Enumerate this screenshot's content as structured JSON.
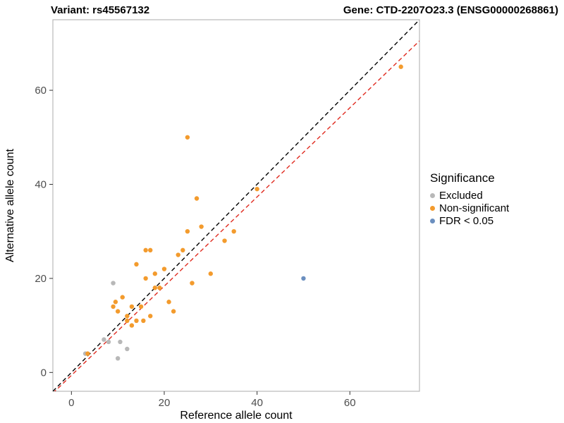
{
  "header": {
    "variant_title": "Variant: rs45567132",
    "gene_title": "Gene: CTD-2207O23.3 (ENSG00000268861)"
  },
  "legend": {
    "title": "Significance",
    "items": [
      {
        "label": "Excluded",
        "color": "#b8b8b8"
      },
      {
        "label": "Non-significant",
        "color": "#f39b2d"
      },
      {
        "label": "FDR < 0.05",
        "color": "#6b8fbf"
      }
    ]
  },
  "chart_data": {
    "type": "scatter",
    "title": "",
    "xlabel": "Reference allele count",
    "ylabel": "Alternative allele count",
    "xlim": [
      -4,
      75
    ],
    "ylim": [
      -4,
      75
    ],
    "xticks": [
      0,
      20,
      40,
      60
    ],
    "yticks": [
      0,
      20,
      40,
      60
    ],
    "grid": false,
    "legend_position": "right",
    "panel_border_color": "#b9b9b9",
    "tick_label_color": "#4d4d4d",
    "series": [
      {
        "name": "Excluded",
        "color": "#b8b8b8",
        "points": [
          [
            3,
            4
          ],
          [
            7,
            7
          ],
          [
            8,
            6.5
          ],
          [
            9,
            19
          ],
          [
            10,
            3
          ],
          [
            10.5,
            6.5
          ],
          [
            12,
            5
          ]
        ]
      },
      {
        "name": "Non-significant",
        "color": "#f39b2d",
        "points": [
          [
            3.5,
            4
          ],
          [
            9,
            14
          ],
          [
            9.5,
            15
          ],
          [
            10,
            13
          ],
          [
            11,
            16
          ],
          [
            12,
            12
          ],
          [
            12,
            11
          ],
          [
            13,
            14
          ],
          [
            13,
            10
          ],
          [
            14,
            23
          ],
          [
            14,
            11
          ],
          [
            15,
            14
          ],
          [
            15.5,
            11
          ],
          [
            16,
            26
          ],
          [
            16,
            20
          ],
          [
            17,
            26
          ],
          [
            17,
            12
          ],
          [
            18,
            21
          ],
          [
            18,
            18
          ],
          [
            19,
            18
          ],
          [
            20,
            22
          ],
          [
            21,
            15
          ],
          [
            22,
            13
          ],
          [
            23,
            25
          ],
          [
            24,
            26
          ],
          [
            25,
            50
          ],
          [
            25,
            30
          ],
          [
            26,
            19
          ],
          [
            27,
            37
          ],
          [
            28,
            31
          ],
          [
            30,
            21
          ],
          [
            33,
            28
          ],
          [
            35,
            30
          ],
          [
            40,
            39
          ],
          [
            71,
            65
          ]
        ]
      },
      {
        "name": "FDR < 0.05",
        "color": "#6b8fbf",
        "points": [
          [
            50,
            20
          ]
        ]
      }
    ],
    "lines": [
      {
        "name": "identity-line",
        "color": "#000000",
        "dash": "6,4",
        "from": [
          -4,
          -4
        ],
        "to": [
          75,
          75
        ]
      },
      {
        "name": "fit-line",
        "color": "#e02b20",
        "dash": "6,4",
        "from": [
          -4,
          -4.4
        ],
        "to": [
          75,
          70.5
        ]
      }
    ]
  }
}
